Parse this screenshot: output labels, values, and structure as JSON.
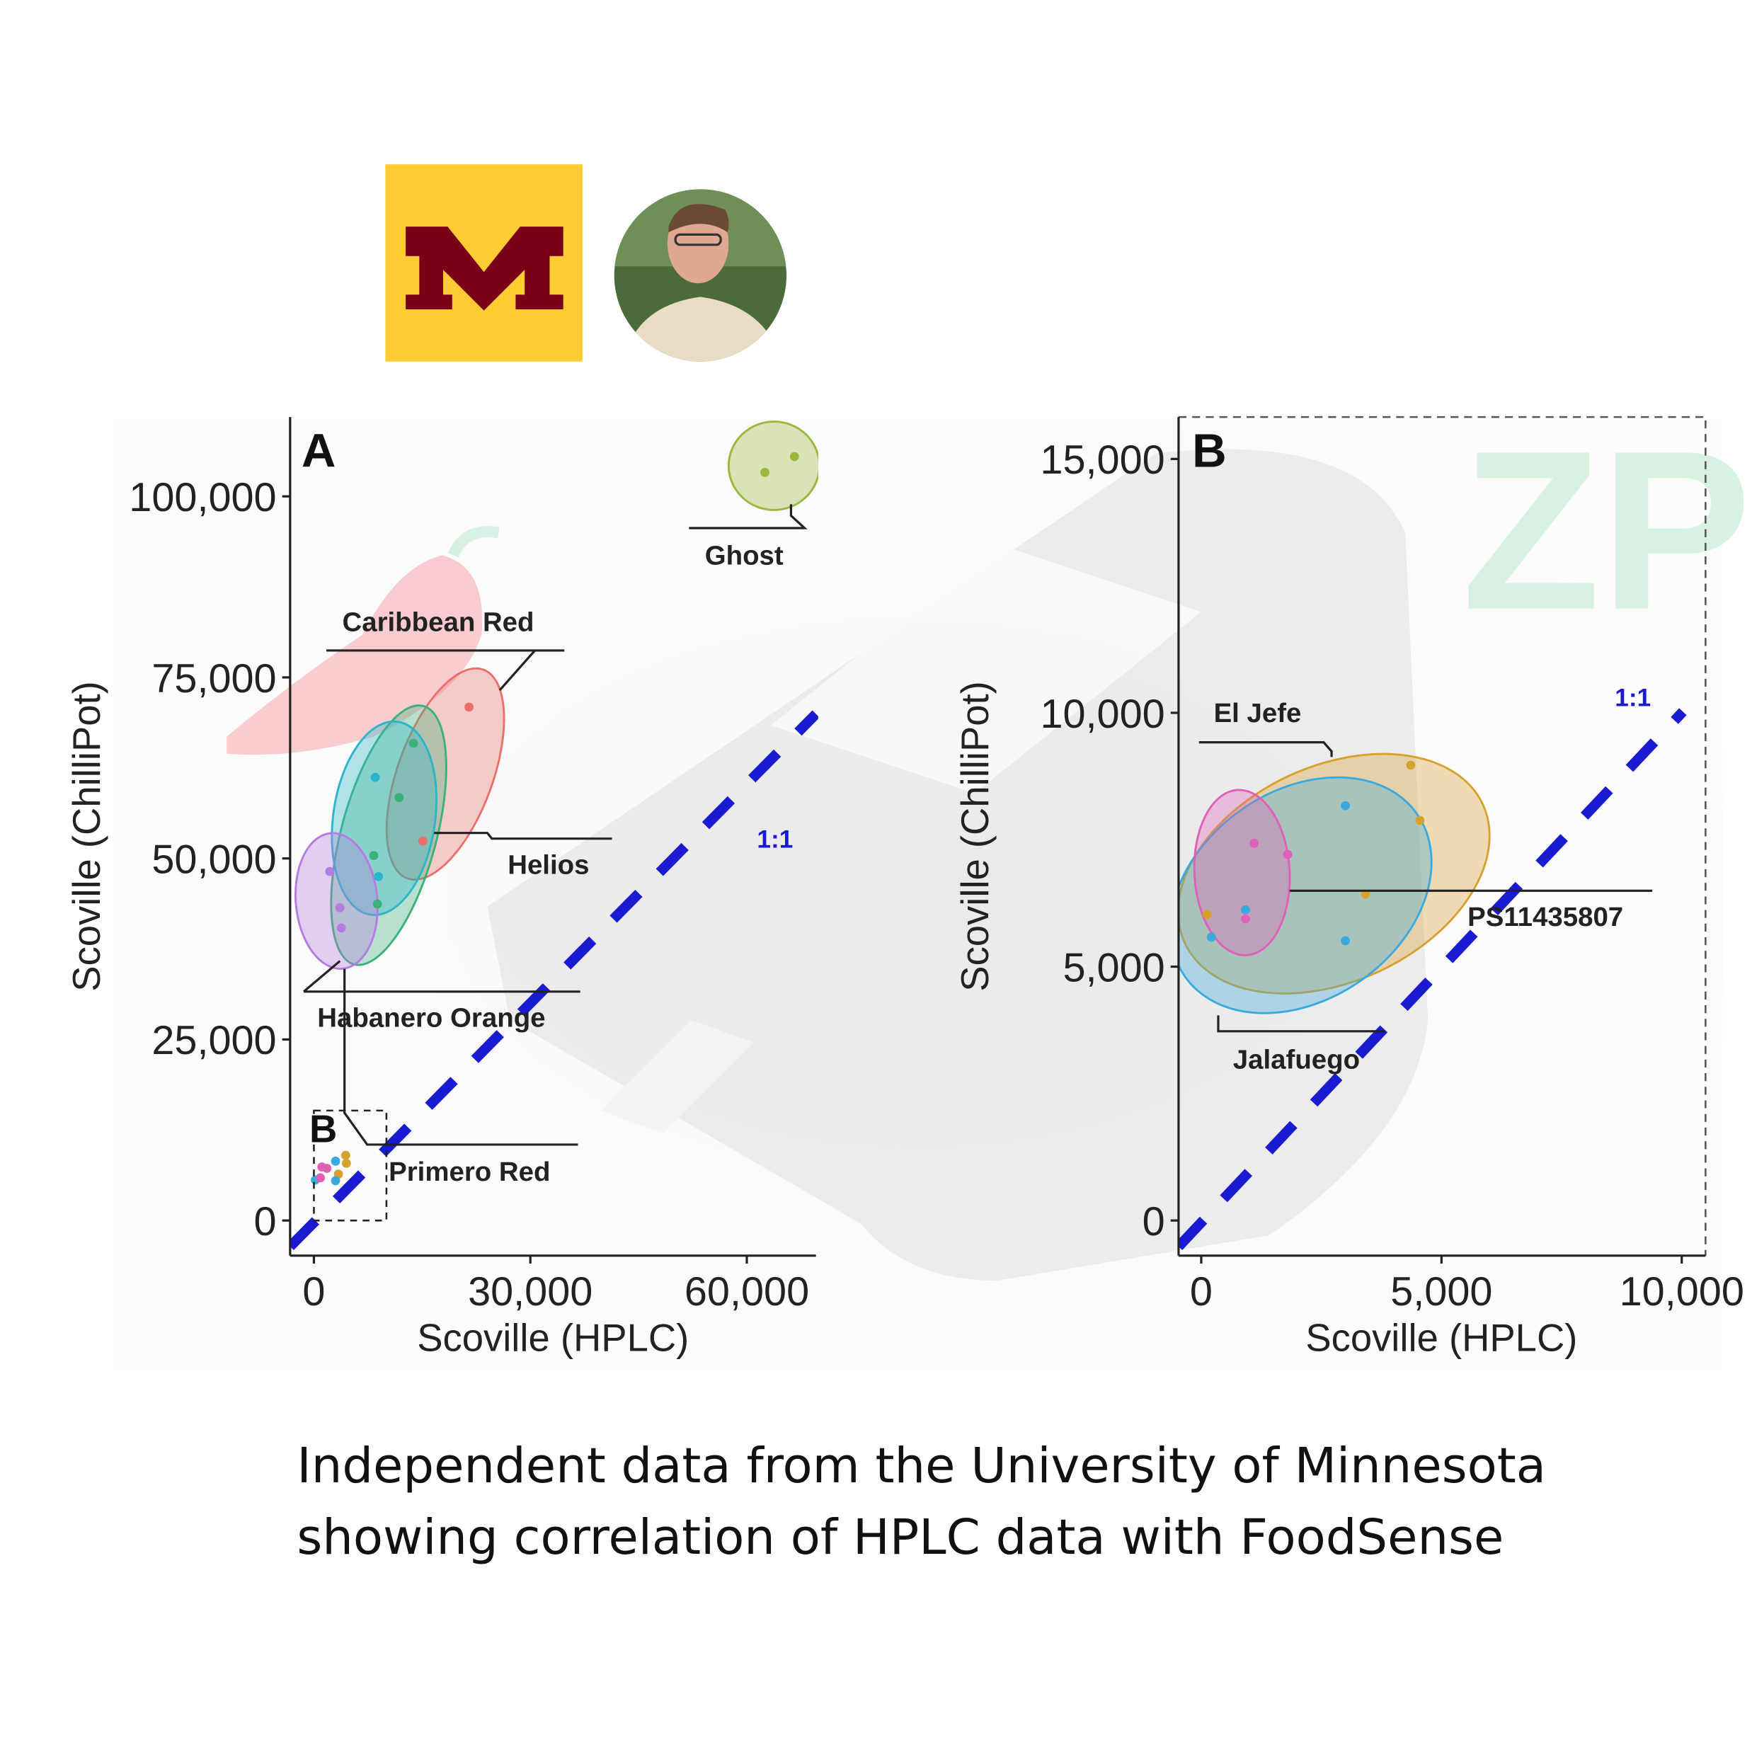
{
  "caption": {
    "line1": "Independent data from the University of Minnesota",
    "line2": "showing correlation of HPLC data with FoodSense"
  },
  "logos": {
    "university_logo_letter": "M",
    "university_logo_colors": {
      "background": "#FFCC33",
      "letter": "#7A0019"
    },
    "watermark_text": "ZP"
  },
  "colors": {
    "one_to_one": "#1a1ad0",
    "caribbean_red": "#e8726b",
    "helios": "#2bb5c9",
    "habanero_orange": "#3bb07a",
    "primero_red": "#b57be0",
    "ghost": "#9ab83a",
    "el_jefe": "#d6a12f",
    "jalafuego": "#3aa9dd",
    "ps11435807": "#e060b8"
  },
  "chart_data": [
    {
      "type": "scatter",
      "panel_label": "A",
      "xlabel": "Scoville (HPLC)",
      "ylabel": "Scoville (ChilliPot)",
      "xticks": [
        "0",
        "30,000",
        "60,000"
      ],
      "xtick_values": [
        0,
        30000,
        60000
      ],
      "yticks": [
        "0",
        "25,000",
        "50,000",
        "75,000",
        "100,000"
      ],
      "ytick_values": [
        0,
        25000,
        50000,
        75000,
        100000
      ],
      "xlim": [
        -3000,
        70000
      ],
      "ylim": [
        -5000,
        111000
      ],
      "reference_line": {
        "label": "1:1",
        "style": "dashed"
      },
      "inset_box_label": "B",
      "series": [
        {
          "name": "Caribbean Red",
          "color": "#e8726b",
          "points": [
            [
              21500,
              70900
            ],
            [
              15100,
              52400
            ]
          ]
        },
        {
          "name": "Helios",
          "color": "#2bb5c9",
          "points": [
            [
              8500,
              61200
            ],
            [
              8950,
              47500
            ]
          ]
        },
        {
          "name": "Habanero Orange",
          "color": "#3bb07a",
          "points": [
            [
              13800,
              65900
            ],
            [
              11800,
              58400
            ],
            [
              8300,
              50400
            ],
            [
              8800,
              43700
            ]
          ]
        },
        {
          "name": "Primero Red",
          "color": "#b57be0",
          "points": [
            [
              2200,
              48200
            ],
            [
              3600,
              43200
            ],
            [
              3800,
              40400
            ]
          ]
        },
        {
          "name": "Ghost",
          "color": "#9ab83a",
          "points": [
            [
              62500,
              103300
            ],
            [
              66600,
              105500
            ]
          ]
        },
        {
          "name": "",
          "color": "#d6a12f",
          "points": [
            [
              4400,
              9000
            ],
            [
              4500,
              7900
            ],
            [
              3400,
              6400
            ]
          ]
        },
        {
          "name": "",
          "color": "#3aa9dd",
          "points": [
            [
              3000,
              8200
            ],
            [
              3000,
              5500
            ],
            [
              200,
              5600
            ]
          ]
        },
        {
          "name": "",
          "color": "#e060b8",
          "points": [
            [
              1100,
              7400
            ],
            [
              1800,
              7200
            ],
            [
              900,
              5900
            ]
          ]
        }
      ]
    },
    {
      "type": "scatter",
      "panel_label": "B",
      "xlabel": "Scoville (HPLC)",
      "ylabel": "Scoville (ChilliPot)",
      "xticks": [
        "0",
        "5,000",
        "10,000"
      ],
      "xtick_values": [
        0,
        5000,
        10000
      ],
      "yticks": [
        "0",
        "5,000",
        "10,000",
        "15,000"
      ],
      "ytick_values": [
        0,
        5000,
        10000,
        15000
      ],
      "xlim": [
        -500,
        10500
      ],
      "ylim": [
        -700,
        16000
      ],
      "reference_line": {
        "label": "1:1",
        "style": "dashed"
      },
      "series": [
        {
          "name": "El Jefe",
          "color": "#d6a12f",
          "points": [
            [
              4360,
              8970
            ],
            [
              4550,
              7880
            ],
            [
              3420,
              6430
            ],
            [
              120,
              6030
            ]
          ]
        },
        {
          "name": "Jalafuego",
          "color": "#3aa9dd",
          "points": [
            [
              3000,
              8170
            ],
            [
              3000,
              5510
            ],
            [
              210,
              5580
            ],
            [
              920,
              6120
            ]
          ]
        },
        {
          "name": "PS11435807",
          "color": "#e060b8",
          "points": [
            [
              1100,
              7430
            ],
            [
              1800,
              7210
            ],
            [
              920,
              5940
            ]
          ]
        }
      ]
    }
  ]
}
